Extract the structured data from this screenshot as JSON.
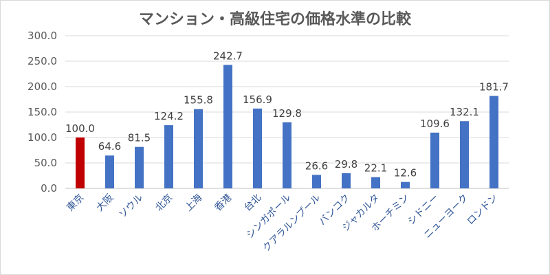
{
  "chart_data": {
    "type": "bar",
    "title": "マンション・高級住宅の価格水準の比較",
    "categories": [
      "東京",
      "大阪",
      "ソウル",
      "北京",
      "上海",
      "香港",
      "台北",
      "シンガポール",
      "クアラルンプール",
      "バンコク",
      "ジャカルタ",
      "ホーチミン",
      "シドニー",
      "ニューヨーク",
      "ロンドン"
    ],
    "values": [
      100.0,
      64.6,
      81.5,
      124.2,
      155.8,
      242.7,
      156.9,
      129.8,
      26.6,
      29.8,
      22.1,
      12.6,
      109.6,
      132.1,
      181.7
    ],
    "value_labels": [
      "100.0",
      "64.6",
      "81.5",
      "124.2",
      "155.8",
      "242.7",
      "156.9",
      "129.8",
      "26.6",
      "29.8",
      "22.1",
      "12.6",
      "109.6",
      "132.1",
      "181.7"
    ],
    "ylim": [
      0,
      300
    ],
    "yticks": [
      "0.0",
      "50.0",
      "100.0",
      "150.0",
      "200.0",
      "250.0",
      "300.0"
    ],
    "ytick_values": [
      0,
      50,
      100,
      150,
      200,
      250,
      300
    ],
    "grid": true,
    "colors": {
      "highlight": "#c00000",
      "default": "#4472c4",
      "grid": "#d9d9d9"
    },
    "highlight_index": 0,
    "xlabel": "",
    "ylabel": ""
  }
}
